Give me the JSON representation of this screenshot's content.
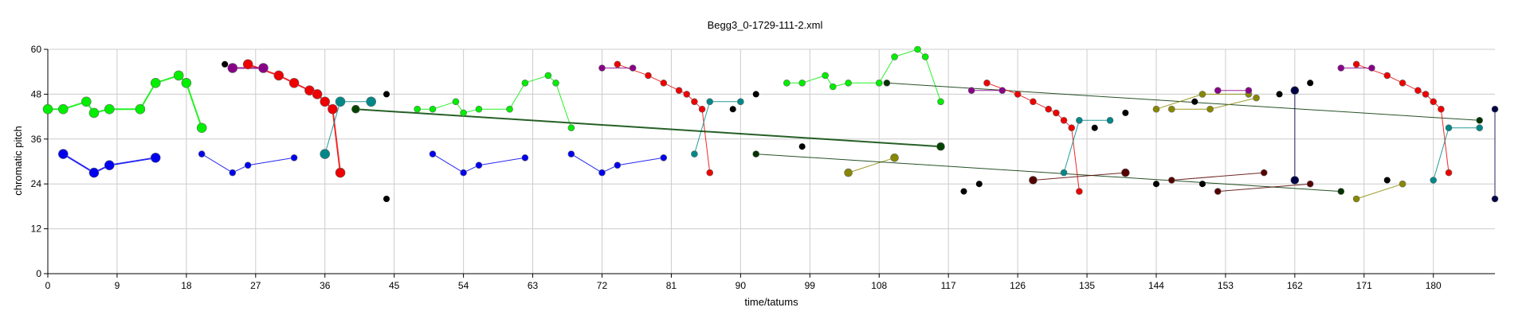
{
  "chart_data": {
    "type": "scatter",
    "title": "Begg3_0-1729-111-2.xml",
    "xlabel": "time/tatums",
    "ylabel": "chromatic pitch",
    "xlim": [
      0,
      188
    ],
    "ylim": [
      0,
      60
    ],
    "x_ticks": [
      0,
      9,
      18,
      27,
      36,
      45,
      54,
      63,
      72,
      81,
      90,
      99,
      108,
      117,
      126,
      135,
      144,
      153,
      162,
      171,
      180
    ],
    "y_ticks": [
      0,
      12,
      24,
      36,
      48,
      60
    ],
    "grid": true,
    "series": [
      {
        "color": "#00ee00",
        "width": 2,
        "r": 6,
        "points": [
          [
            0,
            44
          ],
          [
            2,
            44
          ],
          [
            5,
            46
          ],
          [
            6,
            43
          ],
          [
            8,
            44
          ],
          [
            12,
            44
          ],
          [
            14,
            51
          ],
          [
            17,
            53
          ],
          [
            18,
            51
          ],
          [
            20,
            39
          ]
        ]
      },
      {
        "color": "#0000ee",
        "width": 2,
        "r": 6,
        "points": [
          [
            2,
            32
          ],
          [
            6,
            27
          ],
          [
            8,
            29
          ],
          [
            14,
            31
          ]
        ]
      },
      {
        "color": "#ee0000",
        "width": 2,
        "r": 6,
        "points": [
          [
            26,
            56
          ],
          [
            30,
            53
          ],
          [
            32,
            51
          ],
          [
            34,
            49
          ],
          [
            35,
            48
          ],
          [
            36,
            46
          ],
          [
            37,
            44
          ],
          [
            38,
            27
          ]
        ]
      },
      {
        "color": "#880088",
        "width": 2,
        "r": 6,
        "points": [
          [
            24,
            55
          ],
          [
            28,
            55
          ]
        ]
      },
      {
        "color": "#008888",
        "width": 1,
        "r": 6,
        "points": [
          [
            36,
            32
          ],
          [
            38,
            46
          ],
          [
            42,
            46
          ]
        ]
      },
      {
        "color": "#0000ee",
        "width": 1,
        "r": 4,
        "points": [
          [
            20,
            32
          ],
          [
            24,
            27
          ],
          [
            26,
            29
          ],
          [
            32,
            31
          ]
        ]
      },
      {
        "color": "#00ee00",
        "width": 1,
        "r": 4,
        "points": [
          [
            48,
            44
          ],
          [
            50,
            44
          ],
          [
            53,
            46
          ],
          [
            54,
            43
          ],
          [
            56,
            44
          ],
          [
            60,
            44
          ],
          [
            62,
            51
          ],
          [
            65,
            53
          ],
          [
            66,
            51
          ],
          [
            68,
            39
          ]
        ]
      },
      {
        "color": "#0000ee",
        "width": 1,
        "r": 4,
        "points": [
          [
            50,
            32
          ],
          [
            54,
            27
          ],
          [
            56,
            29
          ],
          [
            62,
            31
          ]
        ]
      },
      {
        "color": "#ee0000",
        "width": 1,
        "r": 4,
        "points": [
          [
            74,
            56
          ],
          [
            78,
            53
          ],
          [
            80,
            51
          ],
          [
            82,
            49
          ],
          [
            83,
            48
          ],
          [
            84,
            46
          ],
          [
            85,
            44
          ],
          [
            86,
            27
          ]
        ]
      },
      {
        "color": "#880088",
        "width": 1,
        "r": 4,
        "points": [
          [
            72,
            55
          ],
          [
            76,
            55
          ]
        ]
      },
      {
        "color": "#0000ee",
        "width": 1,
        "r": 4,
        "points": [
          [
            68,
            32
          ],
          [
            72,
            27
          ],
          [
            74,
            29
          ],
          [
            80,
            31
          ]
        ]
      },
      {
        "color": "#008888",
        "width": 1,
        "r": 4,
        "points": [
          [
            84,
            32
          ],
          [
            86,
            46
          ],
          [
            90,
            46
          ]
        ]
      },
      {
        "color": "#00ee00",
        "width": 1,
        "r": 4,
        "points": [
          [
            96,
            51
          ],
          [
            98,
            51
          ],
          [
            101,
            53
          ],
          [
            102,
            50
          ],
          [
            104,
            51
          ],
          [
            108,
            51
          ],
          [
            110,
            58
          ],
          [
            113,
            60
          ],
          [
            114,
            58
          ],
          [
            116,
            46
          ]
        ]
      },
      {
        "color": "#004400",
        "width": 2,
        "r": 5,
        "points": [
          [
            40,
            44
          ],
          [
            116,
            34
          ]
        ]
      },
      {
        "color": "#888800",
        "width": 1,
        "r": 5,
        "points": [
          [
            104,
            27
          ],
          [
            110,
            31
          ]
        ]
      },
      {
        "color": "#003300",
        "width": 1,
        "r": 4,
        "points": [
          [
            92,
            32
          ],
          [
            168,
            22
          ]
        ]
      },
      {
        "color": "#003300",
        "width": 1,
        "r": 4,
        "points": [
          [
            109,
            51
          ],
          [
            186,
            41
          ]
        ]
      },
      {
        "color": "#ee0000",
        "width": 1,
        "r": 4,
        "points": [
          [
            122,
            51
          ],
          [
            126,
            48
          ],
          [
            128,
            46
          ],
          [
            130,
            44
          ],
          [
            131,
            43
          ],
          [
            132,
            41
          ],
          [
            133,
            39
          ],
          [
            134,
            22
          ]
        ]
      },
      {
        "color": "#880088",
        "width": 1,
        "r": 4,
        "points": [
          [
            120,
            49
          ],
          [
            124,
            49
          ]
        ]
      },
      {
        "color": "#008888",
        "width": 1,
        "r": 4,
        "points": [
          [
            132,
            27
          ],
          [
            134,
            41
          ],
          [
            138,
            41
          ]
        ]
      },
      {
        "color": "#550000",
        "width": 1,
        "r": 5,
        "points": [
          [
            128,
            25
          ],
          [
            140,
            27
          ]
        ]
      },
      {
        "color": "#550000",
        "width": 1,
        "r": 4,
        "points": [
          [
            152,
            22
          ],
          [
            164,
            24
          ]
        ]
      },
      {
        "color": "#550000",
        "width": 1,
        "r": 4,
        "points": [
          [
            146,
            25
          ],
          [
            158,
            27
          ]
        ]
      },
      {
        "color": "#888800",
        "width": 1,
        "r": 4,
        "points": [
          [
            144,
            44
          ],
          [
            150,
            48
          ],
          [
            156,
            48
          ]
        ]
      },
      {
        "color": "#888800",
        "width": 1,
        "r": 4,
        "points": [
          [
            146,
            44
          ],
          [
            151,
            44
          ],
          [
            157,
            47
          ]
        ]
      },
      {
        "color": "#880088",
        "width": 1,
        "r": 4,
        "points": [
          [
            152,
            49
          ],
          [
            156,
            49
          ]
        ]
      },
      {
        "color": "#000044",
        "width": 1,
        "r": 5,
        "points": [
          [
            162,
            49
          ],
          [
            162,
            25
          ]
        ]
      },
      {
        "color": "#ee0000",
        "width": 1,
        "r": 4,
        "points": [
          [
            170,
            56
          ],
          [
            174,
            53
          ],
          [
            176,
            51
          ],
          [
            178,
            49
          ],
          [
            179,
            48
          ],
          [
            180,
            46
          ],
          [
            181,
            44
          ],
          [
            182,
            27
          ]
        ]
      },
      {
        "color": "#880088",
        "width": 1,
        "r": 4,
        "points": [
          [
            168,
            55
          ],
          [
            172,
            55
          ]
        ]
      },
      {
        "color": "#008888",
        "width": 1,
        "r": 4,
        "points": [
          [
            180,
            25
          ],
          [
            182,
            39
          ],
          [
            186,
            39
          ]
        ]
      },
      {
        "color": "#888800",
        "width": 1,
        "r": 4,
        "points": [
          [
            170,
            20
          ],
          [
            176,
            24
          ]
        ]
      },
      {
        "color": "#000044",
        "width": 1,
        "r": 4,
        "points": [
          [
            188,
            44
          ],
          [
            188,
            20
          ]
        ]
      }
    ],
    "isolated_points": [
      [
        23,
        56
      ],
      [
        44,
        48
      ],
      [
        44,
        20
      ],
      [
        89,
        44
      ],
      [
        92,
        48
      ],
      [
        98,
        34
      ],
      [
        119,
        22
      ],
      [
        121,
        24
      ],
      [
        136,
        39
      ],
      [
        140,
        43
      ],
      [
        144,
        24
      ],
      [
        149,
        46
      ],
      [
        150,
        24
      ],
      [
        160,
        48
      ],
      [
        164,
        51
      ],
      [
        174,
        25
      ]
    ]
  }
}
